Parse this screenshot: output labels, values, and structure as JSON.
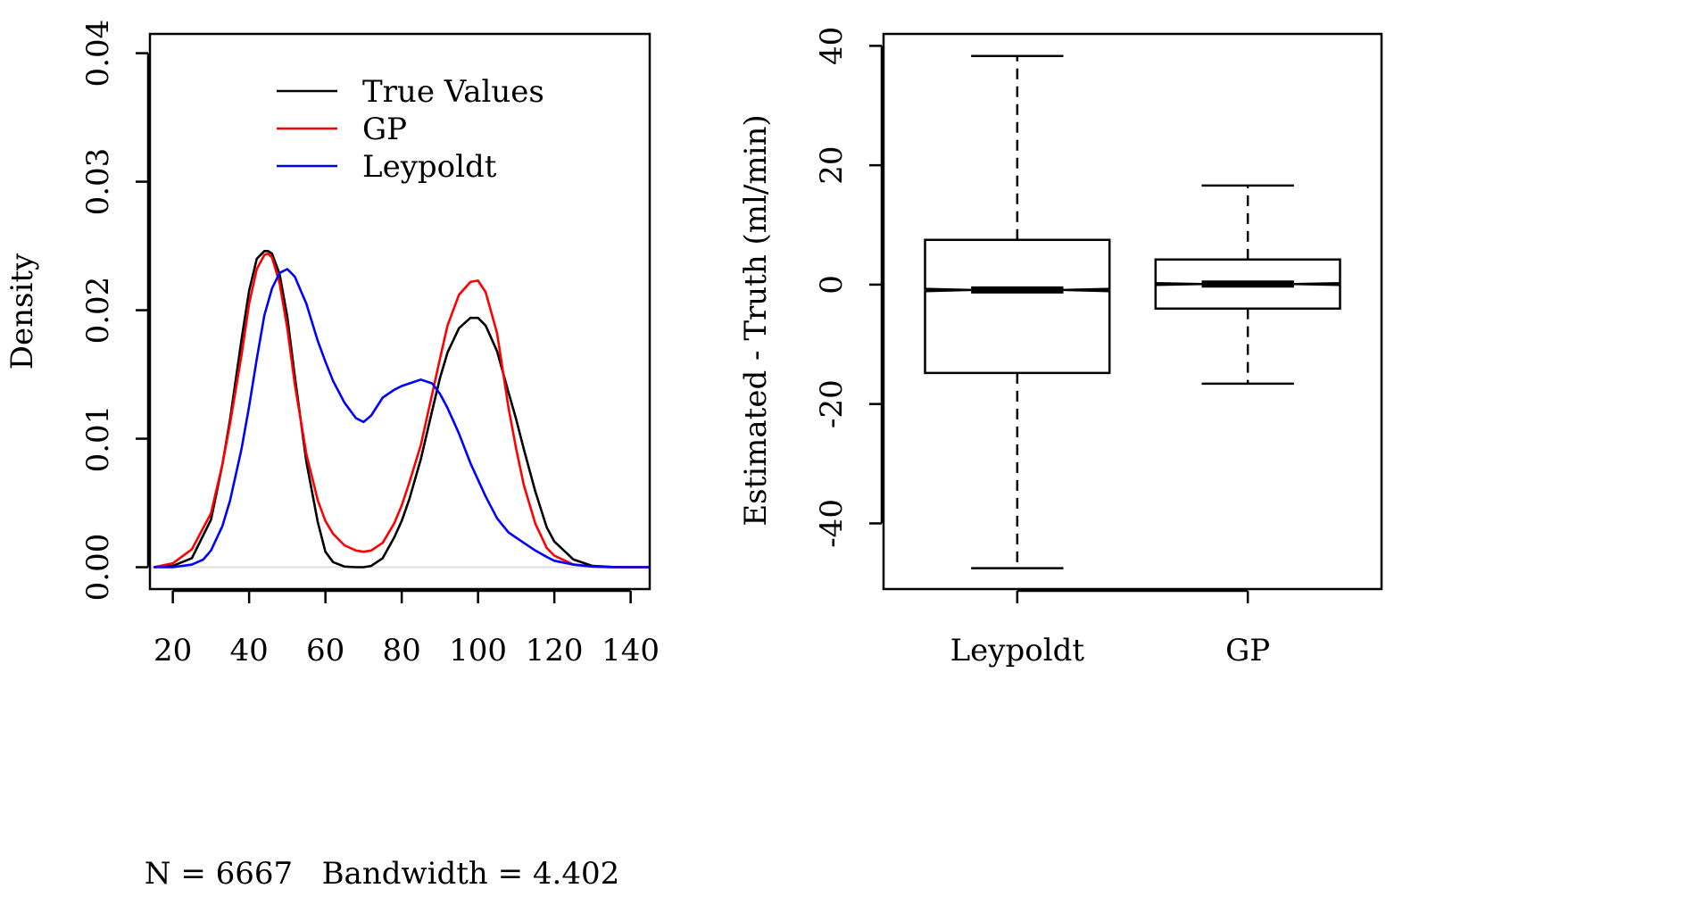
{
  "chart_data": [
    {
      "type": "line",
      "subtype": "density",
      "title": "",
      "xlabel": "N = 6667   Bandwidth = 4.402",
      "ylabel": "Density",
      "xlim": [
        14,
        145
      ],
      "ylim": [
        -0.0017,
        0.0415
      ],
      "x_ticks": [
        20,
        40,
        60,
        80,
        100,
        120,
        140
      ],
      "y_ticks": [
        0,
        0.01,
        0.02,
        0.03,
        0.04
      ],
      "x_tick_labels": [
        "20",
        "40",
        "60",
        "80",
        "100",
        "120",
        "140"
      ],
      "y_tick_labels": [
        "0.00",
        "0.01",
        "0.02",
        "0.03",
        "0.04"
      ],
      "grid": false,
      "legend_position": "top-center",
      "zero_line": true,
      "series": [
        {
          "name": "True Values",
          "color": "#000000",
          "x": [
            15,
            20,
            25,
            30,
            33,
            35,
            38,
            40,
            42,
            44,
            45,
            46,
            48,
            50,
            52,
            55,
            58,
            60,
            62,
            65,
            68,
            70,
            72,
            75,
            78,
            80,
            82,
            85,
            88,
            90,
            92,
            95,
            98,
            100,
            102,
            105,
            108,
            110,
            112,
            115,
            118,
            120,
            125,
            130,
            135,
            140,
            145
          ],
          "y": [
            0,
            0.0001,
            0.0007,
            0.0037,
            0.008,
            0.0115,
            0.0177,
            0.0215,
            0.024,
            0.0246,
            0.0246,
            0.0244,
            0.0228,
            0.0195,
            0.0148,
            0.0082,
            0.0035,
            0.0012,
            0.0004,
            5e-05,
            0,
            0,
            0.0001,
            0.0007,
            0.0023,
            0.0036,
            0.0053,
            0.0084,
            0.0122,
            0.0147,
            0.0167,
            0.0186,
            0.0194,
            0.0194,
            0.0188,
            0.0168,
            0.0136,
            0.0115,
            0.0092,
            0.0059,
            0.0031,
            0.002,
            0.0006,
            0.0001,
            2e-05,
            0,
            0
          ]
        },
        {
          "name": "GP",
          "color": "#ff0000",
          "x": [
            15,
            20,
            25,
            30,
            33,
            35,
            38,
            40,
            42,
            44,
            45,
            46,
            48,
            50,
            52,
            55,
            58,
            60,
            62,
            65,
            68,
            70,
            72,
            75,
            78,
            80,
            82,
            85,
            88,
            90,
            92,
            95,
            98,
            100,
            102,
            105,
            108,
            110,
            112,
            115,
            118,
            120,
            125,
            130,
            135,
            140,
            145
          ],
          "y": [
            0,
            0.0003,
            0.0014,
            0.0042,
            0.008,
            0.0112,
            0.0165,
            0.0205,
            0.0232,
            0.0243,
            0.0244,
            0.0241,
            0.0221,
            0.0186,
            0.0142,
            0.0088,
            0.0052,
            0.0036,
            0.0026,
            0.0017,
            0.0013,
            0.0012,
            0.0013,
            0.0019,
            0.0034,
            0.0048,
            0.0066,
            0.0095,
            0.0135,
            0.0162,
            0.0188,
            0.0212,
            0.0222,
            0.0223,
            0.0214,
            0.0182,
            0.0124,
            0.0092,
            0.0064,
            0.0034,
            0.0015,
            0.0009,
            0.0002,
            5e-05,
            0,
            0,
            0
          ]
        },
        {
          "name": "Leypoldt",
          "color": "#0000ff",
          "x": [
            15,
            20,
            25,
            28,
            30,
            33,
            35,
            38,
            40,
            42,
            44,
            46,
            48,
            50,
            52,
            55,
            58,
            60,
            62,
            65,
            68,
            70,
            72,
            75,
            78,
            80,
            82,
            85,
            88,
            90,
            92,
            95,
            98,
            100,
            102,
            105,
            108,
            110,
            112,
            115,
            118,
            120,
            125,
            130,
            135,
            140,
            145
          ],
          "y": [
            0,
            0,
            0.0002,
            0.0006,
            0.0013,
            0.0032,
            0.0052,
            0.0092,
            0.0125,
            0.0162,
            0.0196,
            0.0217,
            0.0229,
            0.0232,
            0.0226,
            0.0205,
            0.0176,
            0.016,
            0.0145,
            0.0128,
            0.0116,
            0.0113,
            0.0118,
            0.0132,
            0.0138,
            0.0141,
            0.0143,
            0.0146,
            0.0143,
            0.0135,
            0.0124,
            0.0104,
            0.0081,
            0.0068,
            0.0055,
            0.0038,
            0.0027,
            0.0023,
            0.0019,
            0.0013,
            0.0008,
            0.0005,
            0.0002,
            5e-05,
            0,
            0,
            0
          ]
        }
      ]
    },
    {
      "type": "boxplot",
      "notched": true,
      "title": "",
      "xlabel": "",
      "ylabel": "Estimated - Truth (ml/min)",
      "ylim": [
        -51,
        42
      ],
      "y_ticks": [
        -40,
        -20,
        0,
        20,
        40
      ],
      "y_tick_labels": [
        "-40",
        "-20",
        "0",
        "20",
        "40"
      ],
      "grid": false,
      "categories": [
        "Leypoldt",
        "GP"
      ],
      "boxes": [
        {
          "label": "Leypoldt",
          "whisker_low": -47.5,
          "q1": -14.8,
          "median": -0.9,
          "q3": 7.5,
          "whisker_high": 38.3,
          "notch_low": -1.1,
          "notch_high": -0.7
        },
        {
          "label": "GP",
          "whisker_low": -16.6,
          "q1": -4.0,
          "median": 0.1,
          "q3": 4.2,
          "whisker_high": 16.6,
          "notch_low": -0.05,
          "notch_high": 0.25
        }
      ]
    }
  ]
}
